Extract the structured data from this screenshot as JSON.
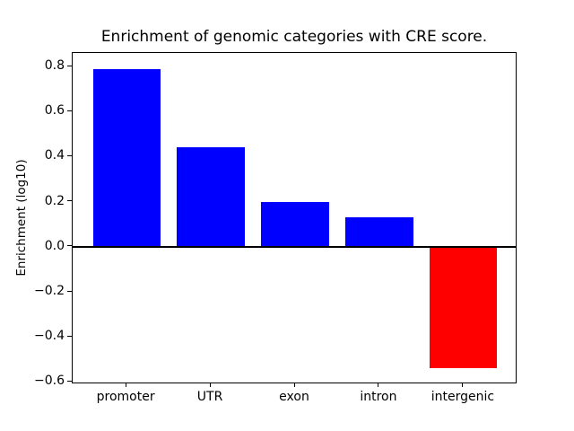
{
  "chart_data": {
    "type": "bar",
    "title": "Enrichment of genomic categories with CRE score.",
    "xlabel": "",
    "ylabel": "Enrichment (log10)",
    "categories": [
      "promoter",
      "UTR",
      "exon",
      "intron",
      "intergenic"
    ],
    "values": [
      0.79,
      0.44,
      0.2,
      0.13,
      -0.54
    ],
    "positive_color": "#0000ff",
    "negative_color": "#ff0000",
    "ylim": [
      -0.61,
      0.86
    ],
    "xlim": [
      -0.64,
      4.64
    ],
    "bar_width": 0.8,
    "yticks": [
      -0.6,
      -0.4,
      -0.2,
      0.0,
      0.2,
      0.4,
      0.6,
      0.8
    ],
    "ytick_labels": [
      "−0.6",
      "−0.4",
      "−0.2",
      "0.0",
      "0.2",
      "0.4",
      "0.6",
      "0.8"
    ],
    "zero_line": true,
    "grid": false,
    "legend": null
  }
}
